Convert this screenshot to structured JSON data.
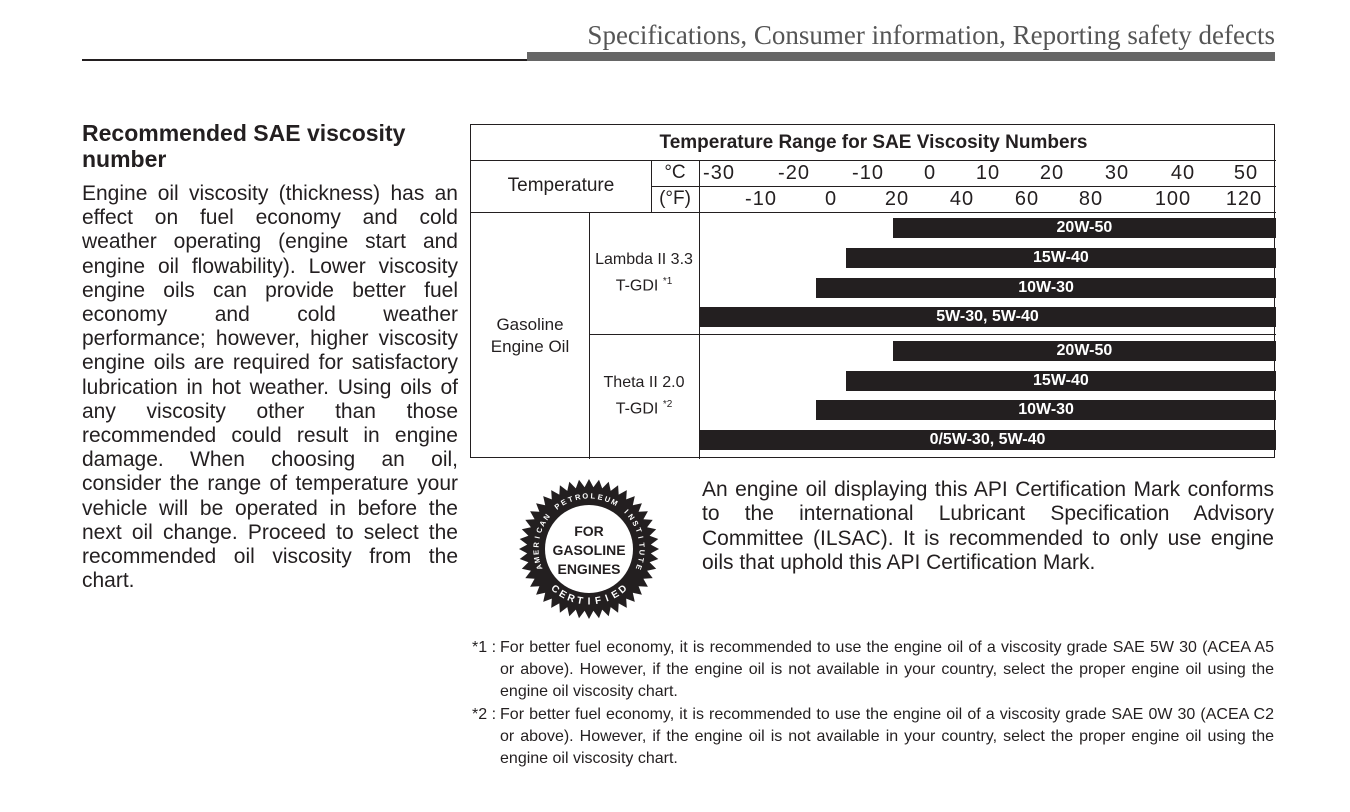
{
  "header": {
    "title": "Specifications, Consumer information, Reporting safety defects"
  },
  "section": {
    "heading": "Recommended SAE viscosity number",
    "body": "Engine oil viscosity (thickness) has an effect on fuel economy and cold weather operating (engine start and engine oil flowability). Lower viscosity engine oils can provide better fuel economy and cold weather performance; however, higher viscosity engine oils are required for satisfactory lubrication in hot weather. Using oils of any viscosity other than those recommended could result in engine damage. When choosing an oil, consider the range of temperature your vehicle will be operated in before the next oil change. Proceed to select the recommended oil viscosity from the chart."
  },
  "chart_data": {
    "type": "table",
    "title": "Temperature Range for SAE Viscosity Numbers",
    "temperature_label": "Temperature",
    "unit_c": "°C",
    "unit_f": "(°F)",
    "celsius_ticks": [
      "-30",
      "-20",
      "-10",
      "0",
      "10",
      "20",
      "30",
      "40",
      "50"
    ],
    "fahrenheit_ticks": [
      "-10",
      "0",
      "20",
      "40",
      "60",
      "80",
      "100",
      "120"
    ],
    "category": "Gasoline Engine Oil",
    "engines": [
      {
        "name": "Lambda II 3.3 T-GDI",
        "note": "*1",
        "grades": [
          {
            "label": "20W-50",
            "min_c": -6,
            "max_c": 50
          },
          {
            "label": "15W-40",
            "min_c": -13,
            "max_c": 50
          },
          {
            "label": "10W-30",
            "min_c": -17,
            "max_c": 50
          },
          {
            "label": "5W-30, 5W-40",
            "min_c": -33,
            "max_c": 50
          }
        ]
      },
      {
        "name": "Theta II 2.0 T-GDI",
        "note": "*2",
        "grades": [
          {
            "label": "20W-50",
            "min_c": -6,
            "max_c": 50
          },
          {
            "label": "15W-40",
            "min_c": -13,
            "max_c": 50
          },
          {
            "label": "10W-30",
            "min_c": -17,
            "max_c": 50
          },
          {
            "label": "0/5W-30, 5W-40",
            "min_c": -33,
            "max_c": 50
          }
        ]
      }
    ]
  },
  "api": {
    "seal_ring": "AMERICAN PETROLEUM INSTITUTE",
    "seal_center": "FOR GASOLINE ENGINES",
    "seal_bottom": "CERTIFIED",
    "text": "An engine oil displaying this API Certification Mark conforms to the international Lubricant Specification Advisory Committee (ILSAC). It is recommended to only use engine oils that uphold this API Certification Mark."
  },
  "footnotes": [
    {
      "mark": "*1 :",
      "text": "For better fuel economy, it is recommended to use the engine oil of a viscosity grade SAE 5W 30 (ACEA A5 or above). However, if the engine oil is not available in your country, select the proper engine oil using the engine oil viscosity chart."
    },
    {
      "mark": "*2 :",
      "text": "For better fuel economy, it is recommended to use the engine oil of a viscosity grade SAE 0W 30 (ACEA C2 or above). However, if the engine oil is not available in your country, select the proper engine oil using the engine oil viscosity chart."
    }
  ]
}
